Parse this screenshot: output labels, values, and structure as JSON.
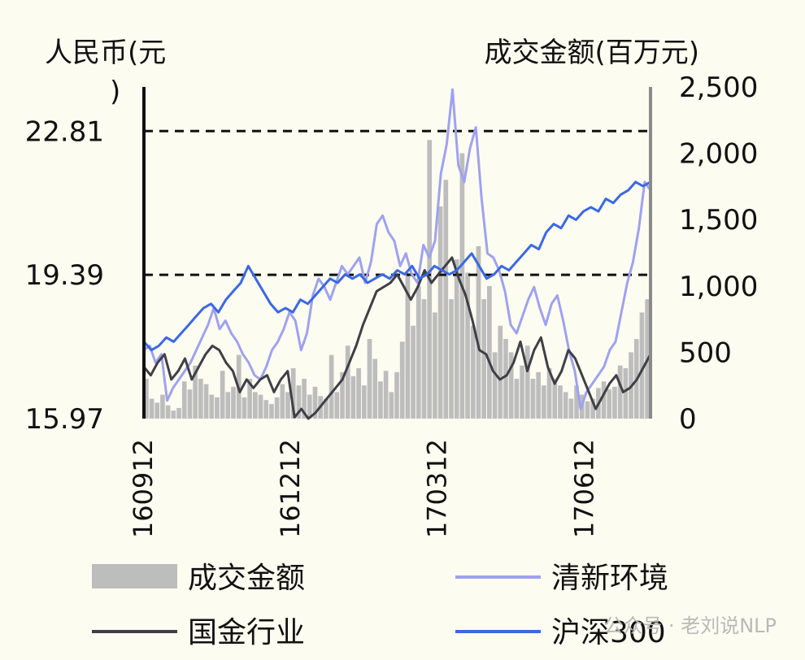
{
  "chart_data": {
    "type": "line",
    "left_axis_title": "人民币(元)",
    "right_axis_title": "成交金额(百万元)",
    "left_ticks": [
      15.97,
      19.39,
      22.81
    ],
    "left_tick_labels": [
      "15.97",
      "19.39",
      "22.81"
    ],
    "left_ylim": [
      15.97,
      23.86
    ],
    "right_ticks": [
      0,
      500,
      1000,
      1500,
      2000,
      2500
    ],
    "right_tick_labels": [
      "0",
      "500",
      "1,000",
      "1,500",
      "2,000",
      "2,500"
    ],
    "right_ylim": [
      0,
      2500
    ],
    "x_tick_labels": [
      "160912",
      "161212",
      "170312",
      "170612"
    ],
    "x_tick_index": [
      0,
      9,
      18,
      27
    ],
    "gridlines_at": [
      19.39,
      22.81
    ],
    "legend_position": "bottom",
    "series": [
      {
        "name": "成交金额",
        "kind": "bar",
        "axis": "right",
        "color": "#bdbdbd",
        "values": [
          300,
          150,
          120,
          180,
          100,
          60,
          80,
          280,
          220,
          400,
          300,
          260,
          180,
          160,
          360,
          200,
          240,
          480,
          160,
          300,
          200,
          180,
          140,
          110,
          160,
          260,
          200,
          380,
          250,
          300,
          180,
          240,
          170,
          150,
          480,
          200,
          350,
          550,
          320,
          380,
          250,
          600,
          450,
          280,
          360,
          200,
          350,
          580,
          1100,
          700,
          1000,
          900,
          2100,
          800,
          1600,
          1800,
          900,
          1200,
          2000,
          1100,
          700,
          1300,
          900,
          1000,
          500,
          700,
          600,
          500,
          300,
          400,
          550,
          300,
          350,
          250,
          380,
          300,
          250,
          200,
          150,
          250,
          180,
          130,
          150,
          230,
          280,
          220,
          240,
          400,
          380,
          500,
          600,
          800,
          900
        ]
      },
      {
        "name": "清新环境",
        "kind": "line",
        "axis": "left",
        "color": "#9ea2f0",
        "values": [
          17.6,
          17.7,
          17.3,
          17.5,
          16.4,
          16.7,
          16.9,
          17.1,
          17.3,
          17.6,
          17.9,
          18.2,
          18.6,
          18.1,
          18.3,
          18.0,
          17.8,
          17.5,
          17.3,
          17.0,
          16.9,
          17.2,
          17.6,
          17.8,
          18.1,
          18.5,
          18.3,
          17.6,
          18.0,
          18.9,
          19.3,
          19.1,
          18.8,
          19.2,
          19.6,
          19.4,
          19.6,
          19.8,
          19.2,
          19.7,
          20.6,
          20.8,
          20.4,
          20.2,
          19.6,
          19.9,
          19.4,
          19.2,
          20.1,
          19.8,
          20.2,
          21.8,
          22.5,
          23.8,
          22.0,
          21.6,
          22.4,
          22.9,
          21.2,
          19.9,
          19.8,
          19.5,
          19.0,
          18.2,
          18.0,
          18.4,
          18.8,
          19.1,
          18.6,
          18.2,
          18.7,
          18.9,
          18.3,
          17.6,
          17.1,
          16.2,
          16.6,
          16.8,
          17.0,
          17.2,
          17.6,
          17.8,
          18.5,
          19.2,
          19.7,
          20.5,
          21.6,
          21.4
        ]
      },
      {
        "name": "国金行业",
        "kind": "line",
        "axis": "left",
        "color": "#3f3f47",
        "values": [
          17.2,
          17.0,
          17.3,
          17.5,
          16.9,
          17.1,
          17.4,
          16.9,
          17.2,
          17.5,
          17.7,
          17.6,
          17.3,
          17.1,
          16.6,
          16.9,
          16.7,
          16.9,
          17.0,
          16.6,
          16.9,
          17.1,
          16.0,
          16.2,
          15.97,
          16.1,
          16.3,
          16.5,
          16.7,
          16.9,
          17.3,
          17.7,
          18.2,
          18.6,
          19.0,
          19.1,
          19.2,
          19.4,
          19.1,
          18.8,
          19.1,
          19.5,
          19.2,
          19.4,
          19.6,
          19.8,
          19.3,
          18.9,
          18.3,
          17.6,
          17.5,
          17.1,
          16.9,
          17.0,
          17.3,
          17.8,
          17.1,
          17.6,
          17.9,
          17.2,
          16.8,
          17.1,
          17.6,
          17.4,
          17.0,
          16.6,
          16.2,
          16.5,
          16.8,
          17.0,
          16.6,
          16.7,
          16.9,
          17.2,
          17.5
        ]
      },
      {
        "name": "沪深300",
        "kind": "line",
        "axis": "left",
        "color": "#3a68e6",
        "values": [
          17.8,
          17.6,
          17.7,
          17.9,
          17.8,
          18.0,
          18.2,
          18.4,
          18.6,
          18.7,
          18.5,
          18.8,
          19.0,
          19.2,
          19.6,
          19.3,
          19.0,
          18.7,
          18.5,
          18.6,
          18.5,
          18.8,
          18.7,
          18.9,
          19.1,
          19.3,
          19.2,
          19.4,
          19.3,
          19.4,
          19.2,
          19.3,
          19.4,
          19.3,
          19.5,
          19.4,
          19.6,
          19.3,
          19.4,
          19.6,
          19.5,
          19.4,
          19.5,
          19.7,
          19.9,
          19.6,
          19.3,
          19.4,
          19.6,
          19.5,
          19.7,
          19.9,
          20.1,
          20.0,
          20.4,
          20.6,
          20.5,
          20.8,
          20.7,
          20.9,
          21.0,
          20.9,
          21.2,
          21.1,
          21.3,
          21.4,
          21.6,
          21.5,
          21.6
        ]
      }
    ]
  },
  "watermark_text": "公众号 · 老刘说NLP"
}
